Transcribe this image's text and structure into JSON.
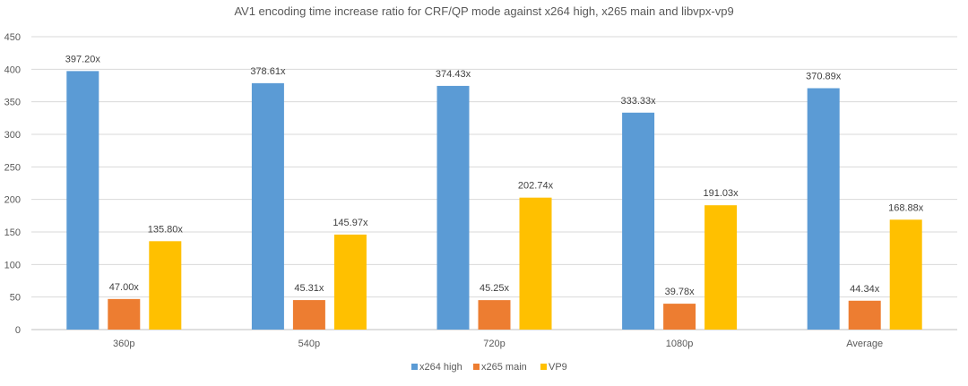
{
  "chart_data": {
    "type": "bar",
    "title": "AV1 encoding time increase ratio for CRF/QP mode against x264 high, x265 main and libvpx-vp9",
    "categories": [
      "360p",
      "540p",
      "720p",
      "1080p",
      "Average"
    ],
    "series": [
      {
        "name": "x264 high",
        "color": "#5b9bd5",
        "values": [
          397.2,
          378.61,
          374.43,
          333.33,
          370.89
        ],
        "labels": [
          "397.20x",
          "378.61x",
          "374.43x",
          "333.33x",
          "370.89x"
        ]
      },
      {
        "name": "x265 main",
        "color": "#ed7d31",
        "values": [
          47.0,
          45.31,
          45.25,
          39.78,
          44.34
        ],
        "labels": [
          "47.00x",
          "45.31x",
          "45.25x",
          "39.78x",
          "44.34x"
        ]
      },
      {
        "name": "VP9",
        "color": "#ffc000",
        "values": [
          135.8,
          145.97,
          202.74,
          191.03,
          168.88
        ],
        "labels": [
          "135.80x",
          "145.97x",
          "202.74x",
          "191.03x",
          "168.88x"
        ]
      }
    ],
    "ylim": [
      0,
      450
    ],
    "yticks": [
      "0",
      "50",
      "100",
      "150",
      "200",
      "250",
      "300",
      "350",
      "400",
      "450"
    ],
    "xlabel": "",
    "ylabel": "",
    "grid": true,
    "legend": "bottom-center"
  }
}
